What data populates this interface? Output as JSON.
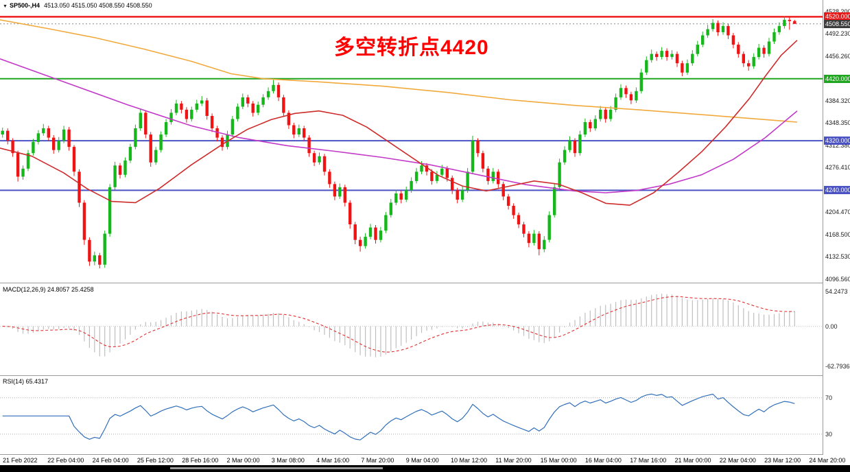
{
  "window": {
    "header": {
      "symbol_period": "SP500-,H4",
      "ohlc_text": "4513.050 4515.050 4508.550 4508.550"
    }
  },
  "annotation": {
    "text": "多空转折点4420",
    "color": "#FE0000"
  },
  "panels": {
    "macd": {
      "label": "MACD(12,26,9) 24.8057 25.4258",
      "axis_labels": [
        {
          "text": "54.2473",
          "value": 54.2473
        },
        {
          "text": "0.00",
          "value": 0
        },
        {
          "text": "-62.7936",
          "value": -62.7936
        }
      ]
    },
    "rsi": {
      "label": "RSI(14) 65.4317",
      "axis_labels": [
        {
          "text": "70",
          "value": 70
        },
        {
          "text": "30",
          "value": 30
        }
      ]
    }
  },
  "price_axis": {
    "labels": [
      {
        "text": "4528.200",
        "value": 4528.2
      },
      {
        "text": "4492.230",
        "value": 4492.23
      },
      {
        "text": "4456.260",
        "value": 4456.26
      },
      {
        "text": "4384.320",
        "value": 4384.32
      },
      {
        "text": "4348.350",
        "value": 4348.35
      },
      {
        "text": "4312.380",
        "value": 4312.38
      },
      {
        "text": "4276.410",
        "value": 4276.41
      },
      {
        "text": "4204.470",
        "value": 4204.47
      },
      {
        "text": "4168.500",
        "value": 4168.5
      },
      {
        "text": "4132.530",
        "value": 4132.53
      },
      {
        "text": "4096.560",
        "value": 4096.56
      }
    ],
    "badges": [
      {
        "text": "4520.000",
        "value": 4520.0,
        "bg": "#E81717"
      },
      {
        "text": "4508.550",
        "value": 4508.55,
        "bg": "#3C3C3C"
      },
      {
        "text": "4420.000",
        "value": 4420.0,
        "bg": "#1FA51F"
      },
      {
        "text": "4320.000",
        "value": 4320.0,
        "bg": "#4A52C4"
      },
      {
        "text": "4240.000",
        "value": 4240.0,
        "bg": "#4A52C4"
      }
    ]
  },
  "time_axis": {
    "labels": [
      "21 Feb 2022",
      "22 Feb 04:00",
      "24 Feb 04:00",
      "25 Feb 12:00",
      "28 Feb 16:00",
      "2 Mar 00:00",
      "3 Mar 08:00",
      "4 Mar 16:00",
      "7 Mar 20:00",
      "9 Mar 04:00",
      "10 Mar 12:00",
      "11 Mar 20:00",
      "15 Mar 00:00",
      "16 Mar 04:00",
      "17 Mar 16:00",
      "21 Mar 00:00",
      "22 Mar 04:00",
      "23 Mar 12:00",
      "24 Mar 20:00"
    ]
  },
  "chart_data": {
    "type": "candlestick",
    "symbol": "SP500-",
    "timeframe": "H4",
    "title": "SP500-,H4",
    "last_ohlc": {
      "open": 4513.05,
      "high": 4515.05,
      "low": 4508.55,
      "close": 4508.55
    },
    "price_range": {
      "min": 4091,
      "max": 4547
    },
    "current_price": 4508.55,
    "colors": {
      "up": "#16B71B",
      "down": "#EF1313",
      "ma_slow": "#F2A93B",
      "ma_mid": "#C238C8",
      "ma_fast": "#CE2B2B",
      "macd_hist": "#BFBFBF",
      "macd_signal": "#E03030",
      "rsi_line": "#2F6FBA"
    },
    "hlines": [
      {
        "price": 4520,
        "color": "#EE1111",
        "width": 2.4
      },
      {
        "price": 4420,
        "color": "#1FA51F",
        "width": 2
      },
      {
        "price": 4320,
        "color": "#4A52C4",
        "width": 2
      },
      {
        "price": 4240,
        "color": "#4A52C4",
        "width": 2
      }
    ],
    "candles": [
      [
        4330,
        4341,
        4325,
        4336
      ],
      [
        4336,
        4340,
        4314,
        4320
      ],
      [
        4320,
        4324,
        4294,
        4300
      ],
      [
        4300,
        4304,
        4254,
        4262
      ],
      [
        4262,
        4280,
        4257,
        4275
      ],
      [
        4275,
        4305,
        4271,
        4300
      ],
      [
        4300,
        4323,
        4296,
        4318
      ],
      [
        4318,
        4337,
        4314,
        4332
      ],
      [
        4332,
        4347,
        4328,
        4340
      ],
      [
        4340,
        4344,
        4320,
        4325
      ],
      [
        4325,
        4329,
        4299,
        4305
      ],
      [
        4305,
        4326,
        4301,
        4320
      ],
      [
        4320,
        4344,
        4316,
        4338
      ],
      [
        4338,
        4342,
        4304,
        4310
      ],
      [
        4310,
        4313,
        4263,
        4270
      ],
      [
        4270,
        4274,
        4213,
        4220
      ],
      [
        4220,
        4224,
        4152,
        4160
      ],
      [
        4160,
        4164,
        4118,
        4125
      ],
      [
        4125,
        4141,
        4119,
        4135
      ],
      [
        4135,
        4139,
        4114,
        4120
      ],
      [
        4120,
        4175,
        4115,
        4170
      ],
      [
        4170,
        4250,
        4165,
        4245
      ],
      [
        4245,
        4286,
        4241,
        4280
      ],
      [
        4280,
        4284,
        4259,
        4265
      ],
      [
        4265,
        4293,
        4261,
        4288
      ],
      [
        4288,
        4315,
        4284,
        4310
      ],
      [
        4310,
        4346,
        4306,
        4340
      ],
      [
        4340,
        4372,
        4336,
        4365
      ],
      [
        4365,
        4369,
        4324,
        4330
      ],
      [
        4330,
        4334,
        4278,
        4285
      ],
      [
        4285,
        4310,
        4281,
        4305
      ],
      [
        4305,
        4335,
        4301,
        4330
      ],
      [
        4330,
        4355,
        4326,
        4350
      ],
      [
        4350,
        4371,
        4346,
        4365
      ],
      [
        4365,
        4386,
        4361,
        4380
      ],
      [
        4380,
        4384,
        4364,
        4370
      ],
      [
        4370,
        4374,
        4349,
        4355
      ],
      [
        4355,
        4375,
        4351,
        4370
      ],
      [
        4370,
        4386,
        4366,
        4380
      ],
      [
        4380,
        4392,
        4376,
        4385
      ],
      [
        4385,
        4389,
        4354,
        4360
      ],
      [
        4360,
        4364,
        4334,
        4340
      ],
      [
        4340,
        4344,
        4319,
        4325
      ],
      [
        4325,
        4329,
        4304,
        4310
      ],
      [
        4310,
        4336,
        4306,
        4330
      ],
      [
        4330,
        4360,
        4326,
        4355
      ],
      [
        4355,
        4380,
        4351,
        4375
      ],
      [
        4375,
        4396,
        4371,
        4390
      ],
      [
        4390,
        4394,
        4374,
        4380
      ],
      [
        4380,
        4384,
        4359,
        4365
      ],
      [
        4365,
        4383,
        4361,
        4378
      ],
      [
        4378,
        4395,
        4374,
        4390
      ],
      [
        4390,
        4406,
        4386,
        4400
      ],
      [
        4400,
        4418,
        4396,
        4410
      ],
      [
        4410,
        4414,
        4384,
        4390
      ],
      [
        4390,
        4394,
        4359,
        4365
      ],
      [
        4365,
        4369,
        4339,
        4345
      ],
      [
        4345,
        4349,
        4324,
        4330
      ],
      [
        4330,
        4346,
        4326,
        4340
      ],
      [
        4340,
        4344,
        4319,
        4325
      ],
      [
        4325,
        4329,
        4294,
        4300
      ],
      [
        4300,
        4304,
        4279,
        4285
      ],
      [
        4285,
        4301,
        4281,
        4295
      ],
      [
        4295,
        4299,
        4264,
        4270
      ],
      [
        4270,
        4274,
        4244,
        4250
      ],
      [
        4250,
        4254,
        4224,
        4230
      ],
      [
        4230,
        4251,
        4226,
        4245
      ],
      [
        4245,
        4249,
        4214,
        4220
      ],
      [
        4220,
        4224,
        4178,
        4185
      ],
      [
        4185,
        4189,
        4153,
        4160
      ],
      [
        4160,
        4165,
        4141,
        4150
      ],
      [
        4150,
        4171,
        4146,
        4165
      ],
      [
        4165,
        4186,
        4161,
        4180
      ],
      [
        4180,
        4184,
        4154,
        4160
      ],
      [
        4160,
        4181,
        4156,
        4175
      ],
      [
        4175,
        4205,
        4171,
        4200
      ],
      [
        4200,
        4226,
        4196,
        4220
      ],
      [
        4220,
        4241,
        4216,
        4235
      ],
      [
        4235,
        4239,
        4219,
        4225
      ],
      [
        4225,
        4246,
        4221,
        4240
      ],
      [
        4240,
        4261,
        4236,
        4255
      ],
      [
        4255,
        4276,
        4251,
        4270
      ],
      [
        4270,
        4287,
        4266,
        4280
      ],
      [
        4280,
        4284,
        4264,
        4270
      ],
      [
        4270,
        4274,
        4249,
        4255
      ],
      [
        4255,
        4271,
        4251,
        4265
      ],
      [
        4265,
        4281,
        4261,
        4275
      ],
      [
        4275,
        4279,
        4254,
        4260
      ],
      [
        4260,
        4264,
        4234,
        4240
      ],
      [
        4240,
        4244,
        4219,
        4225
      ],
      [
        4225,
        4246,
        4221,
        4240
      ],
      [
        4240,
        4276,
        4236,
        4270
      ],
      [
        4270,
        4328,
        4266,
        4320
      ],
      [
        4320,
        4324,
        4294,
        4300
      ],
      [
        4300,
        4304,
        4269,
        4275
      ],
      [
        4275,
        4279,
        4249,
        4255
      ],
      [
        4255,
        4276,
        4251,
        4270
      ],
      [
        4270,
        4274,
        4244,
        4250
      ],
      [
        4250,
        4254,
        4224,
        4230
      ],
      [
        4230,
        4234,
        4209,
        4215
      ],
      [
        4215,
        4219,
        4194,
        4200
      ],
      [
        4200,
        4204,
        4179,
        4185
      ],
      [
        4185,
        4189,
        4164,
        4170
      ],
      [
        4170,
        4174,
        4148,
        4155
      ],
      [
        4155,
        4176,
        4151,
        4170
      ],
      [
        4170,
        4174,
        4135,
        4145
      ],
      [
        4145,
        4166,
        4140,
        4160
      ],
      [
        4160,
        4206,
        4156,
        4200
      ],
      [
        4200,
        4251,
        4196,
        4245
      ],
      [
        4245,
        4291,
        4241,
        4285
      ],
      [
        4285,
        4311,
        4281,
        4305
      ],
      [
        4305,
        4327,
        4301,
        4320
      ],
      [
        4320,
        4324,
        4294,
        4300
      ],
      [
        4300,
        4336,
        4296,
        4330
      ],
      [
        4330,
        4356,
        4326,
        4350
      ],
      [
        4350,
        4354,
        4334,
        4340
      ],
      [
        4340,
        4361,
        4336,
        4355
      ],
      [
        4355,
        4376,
        4351,
        4370
      ],
      [
        4370,
        4374,
        4349,
        4355
      ],
      [
        4355,
        4376,
        4351,
        4370
      ],
      [
        4370,
        4396,
        4366,
        4390
      ],
      [
        4390,
        4411,
        4386,
        4405
      ],
      [
        4405,
        4409,
        4389,
        4395
      ],
      [
        4395,
        4399,
        4379,
        4385
      ],
      [
        4385,
        4406,
        4381,
        4400
      ],
      [
        4400,
        4436,
        4396,
        4430
      ],
      [
        4430,
        4456,
        4426,
        4450
      ],
      [
        4450,
        4467,
        4446,
        4460
      ],
      [
        4460,
        4464,
        4449,
        4455
      ],
      [
        4455,
        4471,
        4451,
        4465
      ],
      [
        4465,
        4469,
        4449,
        4455
      ],
      [
        4455,
        4466,
        4451,
        4460
      ],
      [
        4460,
        4464,
        4439,
        4445
      ],
      [
        4445,
        4449,
        4424,
        4430
      ],
      [
        4430,
        4451,
        4426,
        4445
      ],
      [
        4445,
        4466,
        4441,
        4460
      ],
      [
        4460,
        4481,
        4456,
        4475
      ],
      [
        4475,
        4496,
        4471,
        4490
      ],
      [
        4490,
        4507,
        4486,
        4500
      ],
      [
        4500,
        4516,
        4496,
        4510
      ],
      [
        4510,
        4514,
        4489,
        4495
      ],
      [
        4495,
        4511,
        4491,
        4505
      ],
      [
        4505,
        4509,
        4484,
        4490
      ],
      [
        4490,
        4494,
        4469,
        4475
      ],
      [
        4475,
        4479,
        4454,
        4460
      ],
      [
        4460,
        4464,
        4439,
        4445
      ],
      [
        4445,
        4450,
        4433,
        4440
      ],
      [
        4440,
        4461,
        4436,
        4455
      ],
      [
        4455,
        4476,
        4451,
        4470
      ],
      [
        4470,
        4474,
        4454,
        4460
      ],
      [
        4460,
        4486,
        4456,
        4480
      ],
      [
        4480,
        4501,
        4476,
        4495
      ],
      [
        4495,
        4511,
        4491,
        4505
      ],
      [
        4505,
        4521,
        4501,
        4515
      ],
      [
        4515,
        4519,
        4499,
        4513
      ],
      [
        4513.05,
        4515.05,
        4508.55,
        4508.55
      ]
    ],
    "overlays": [
      {
        "name": "ma-slow",
        "color": "#F2A93B",
        "points": [
          [
            0,
            4515
          ],
          [
            0.06,
            4501
          ],
          [
            0.12,
            4486
          ],
          [
            0.18,
            4468
          ],
          [
            0.24,
            4448
          ],
          [
            0.29,
            4428
          ],
          [
            0.33,
            4420
          ],
          [
            0.4,
            4415
          ],
          [
            0.48,
            4408
          ],
          [
            0.56,
            4398
          ],
          [
            0.64,
            4386
          ],
          [
            0.72,
            4377
          ],
          [
            0.8,
            4370
          ],
          [
            0.88,
            4362
          ],
          [
            0.94,
            4356
          ],
          [
            1,
            4350
          ]
        ]
      },
      {
        "name": "ma-mid",
        "color": "#C238C8",
        "points": [
          [
            0,
            4452
          ],
          [
            0.08,
            4415
          ],
          [
            0.16,
            4378
          ],
          [
            0.24,
            4344
          ],
          [
            0.3,
            4325
          ],
          [
            0.36,
            4312
          ],
          [
            0.42,
            4303
          ],
          [
            0.48,
            4293
          ],
          [
            0.54,
            4281
          ],
          [
            0.6,
            4265
          ],
          [
            0.66,
            4249
          ],
          [
            0.72,
            4239
          ],
          [
            0.76,
            4236
          ],
          [
            0.8,
            4240
          ],
          [
            0.84,
            4250
          ],
          [
            0.88,
            4265
          ],
          [
            0.92,
            4290
          ],
          [
            0.96,
            4325
          ],
          [
            1,
            4368
          ]
        ]
      },
      {
        "name": "ma-fast",
        "color": "#CE2B2B",
        "points": [
          [
            0,
            4308
          ],
          [
            0.04,
            4295
          ],
          [
            0.08,
            4268
          ],
          [
            0.11,
            4242
          ],
          [
            0.14,
            4222
          ],
          [
            0.17,
            4220
          ],
          [
            0.2,
            4243
          ],
          [
            0.24,
            4281
          ],
          [
            0.28,
            4315
          ],
          [
            0.31,
            4338
          ],
          [
            0.34,
            4354
          ],
          [
            0.37,
            4364
          ],
          [
            0.4,
            4368
          ],
          [
            0.43,
            4361
          ],
          [
            0.46,
            4342
          ],
          [
            0.49,
            4316
          ],
          [
            0.52,
            4290
          ],
          [
            0.55,
            4264
          ],
          [
            0.58,
            4247
          ],
          [
            0.61,
            4239
          ],
          [
            0.64,
            4247
          ],
          [
            0.67,
            4255
          ],
          [
            0.7,
            4250
          ],
          [
            0.73,
            4236
          ],
          [
            0.76,
            4219
          ],
          [
            0.79,
            4216
          ],
          [
            0.82,
            4236
          ],
          [
            0.85,
            4268
          ],
          [
            0.88,
            4302
          ],
          [
            0.91,
            4342
          ],
          [
            0.94,
            4388
          ],
          [
            0.96,
            4424
          ],
          [
            0.98,
            4458
          ],
          [
            1,
            4482
          ]
        ]
      }
    ],
    "macd": {
      "fast": 12,
      "slow": 26,
      "signal": 9,
      "last_macd": 24.8057,
      "last_signal": 25.4258,
      "range": {
        "min": -76.7,
        "max": 67.2
      }
    },
    "rsi": {
      "period": 14,
      "last": 65.4317,
      "levels": [
        70,
        30
      ],
      "range": {
        "min": 8,
        "max": 94
      }
    }
  }
}
